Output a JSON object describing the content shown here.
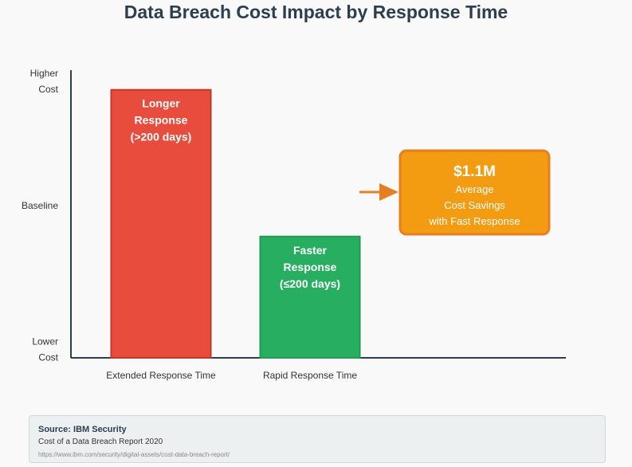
{
  "chart_data": {
    "type": "bar",
    "title": "Data Breach Cost Impact by Response Time",
    "categories": [
      "Extended Response Time",
      "Rapid Response Time"
    ],
    "values": [
      0.95,
      0.43
    ],
    "ylim": [
      0,
      1
    ],
    "grid": false,
    "y_ticks": [
      {
        "lines": [
          "Higher",
          "Cost"
        ],
        "value": 0.98
      },
      {
        "lines": [
          "Baseline"
        ],
        "value": 0.54
      },
      {
        "lines": [
          "Lower",
          "Cost"
        ],
        "value": 0.03
      }
    ],
    "bars": [
      {
        "category": "Extended Response Time",
        "label_lines": [
          "Longer",
          "Response",
          "(>200 days)"
        ],
        "color": "#e74c3c",
        "border": "#c0392b"
      },
      {
        "category": "Rapid Response Time",
        "label_lines": [
          "Faster",
          "Response",
          "(≤200 days)"
        ],
        "color": "#27ae60",
        "border": "#229954"
      }
    ],
    "callout": {
      "value": "$1.1M",
      "lines": [
        "Average",
        "Cost Savings",
        "with Fast Response"
      ],
      "fill": "#f39c12",
      "border": "#e67e22",
      "arrow_color": "#e67e22"
    },
    "axis_color": "#2c3e50"
  },
  "source": {
    "title": "Source: IBM Security",
    "report": "Cost of a Data Breach Report 2020",
    "url": "https://www.ibm.com/security/digital-assets/cost-data-breach-report/"
  }
}
